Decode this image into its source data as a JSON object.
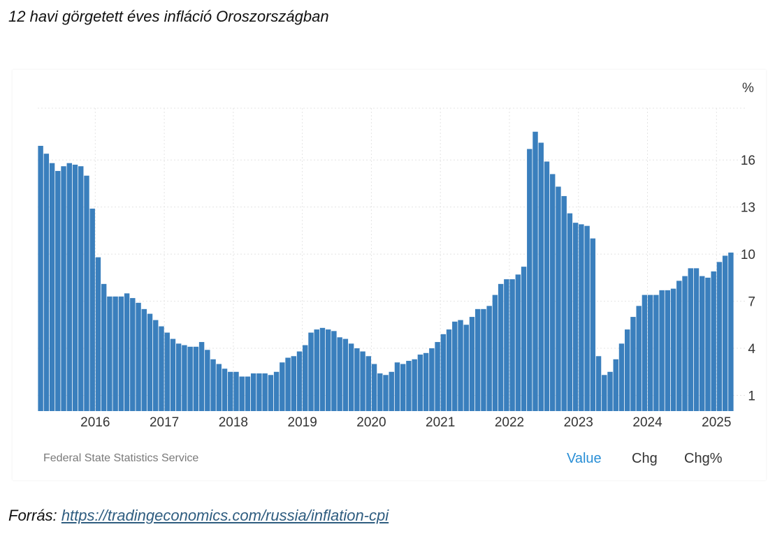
{
  "page": {
    "title": "12 havi görgetett éves infláció Oroszországban",
    "source_prefix": "Forrás:",
    "source_url": "https://tradingeconomics.com/russia/inflation-cpi"
  },
  "panel": {
    "attribution": "Federal State Statistics Service",
    "tabs": [
      {
        "label": "Value",
        "active": true
      },
      {
        "label": "Chg",
        "active": false
      },
      {
        "label": "Chg%",
        "active": false
      }
    ]
  },
  "colors": {
    "bar": "#3a7fbd",
    "active_tab": "#2a8fd6",
    "grid": "#e4e4e4"
  },
  "chart_data": {
    "type": "bar",
    "unit_label": "%",
    "x_start": "2015-03",
    "x_ticks": [
      "2016",
      "2017",
      "2018",
      "2019",
      "2020",
      "2021",
      "2022",
      "2023",
      "2024",
      "2025"
    ],
    "y_ticks": [
      1,
      4,
      7,
      10,
      13,
      16
    ],
    "ylim": [
      0,
      19.3
    ],
    "grid": true,
    "values": [
      16.9,
      16.4,
      15.8,
      15.3,
      15.6,
      15.8,
      15.7,
      15.6,
      15.0,
      12.9,
      9.8,
      8.1,
      7.3,
      7.3,
      7.3,
      7.5,
      7.2,
      6.9,
      6.5,
      6.2,
      5.8,
      5.4,
      5.0,
      4.6,
      4.3,
      4.2,
      4.1,
      4.1,
      4.4,
      3.9,
      3.3,
      3.0,
      2.7,
      2.5,
      2.5,
      2.2,
      2.2,
      2.4,
      2.4,
      2.4,
      2.3,
      2.5,
      3.1,
      3.4,
      3.5,
      3.8,
      4.2,
      5.0,
      5.2,
      5.3,
      5.2,
      5.1,
      4.7,
      4.6,
      4.3,
      4.0,
      3.8,
      3.5,
      3.0,
      2.4,
      2.3,
      2.5,
      3.1,
      3.0,
      3.2,
      3.3,
      3.6,
      3.7,
      4.0,
      4.4,
      4.9,
      5.2,
      5.7,
      5.8,
      5.5,
      6.0,
      6.5,
      6.5,
      6.7,
      7.4,
      8.1,
      8.4,
      8.4,
      8.7,
      9.2,
      16.7,
      17.8,
      17.1,
      15.9,
      15.1,
      14.3,
      13.7,
      12.6,
      12.0,
      11.9,
      11.8,
      11.0,
      3.5,
      2.3,
      2.5,
      3.3,
      4.3,
      5.2,
      6.0,
      6.7,
      7.4,
      7.4,
      7.4,
      7.7,
      7.7,
      7.8,
      8.3,
      8.6,
      9.1,
      9.1,
      8.6,
      8.5,
      8.9,
      9.5,
      9.9,
      10.1
    ]
  }
}
